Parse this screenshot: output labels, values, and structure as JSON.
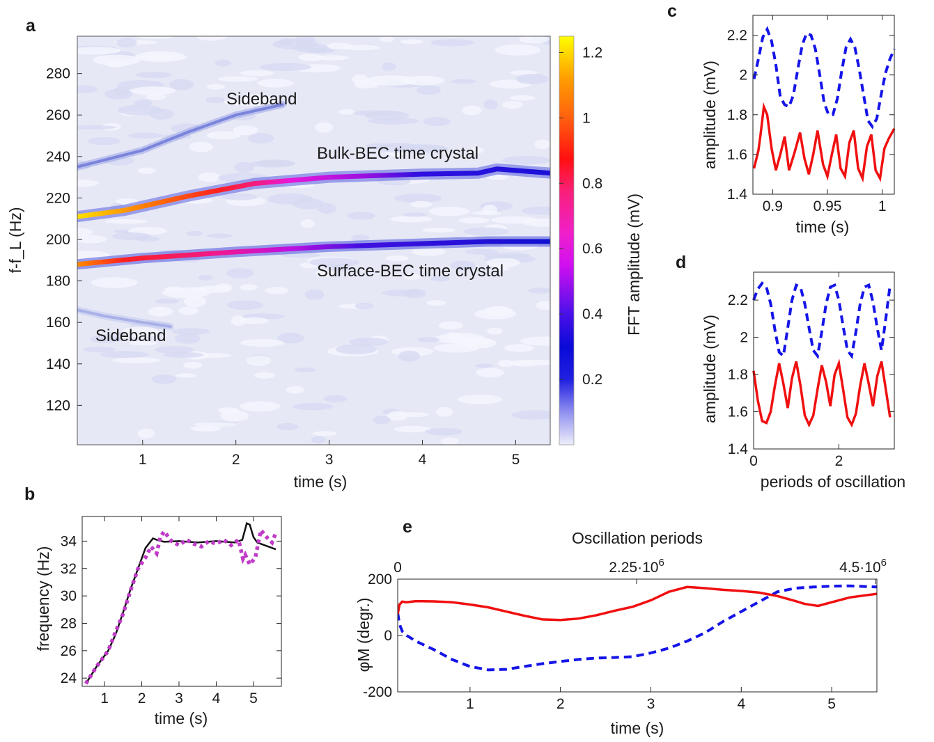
{
  "panels": [
    {
      "id": "a",
      "label": "a"
    },
    {
      "id": "b",
      "label": "b"
    },
    {
      "id": "c",
      "label": "c"
    },
    {
      "id": "d",
      "label": "d"
    },
    {
      "id": "e",
      "label": "e"
    }
  ],
  "colors": {
    "dashed": "#1515e8",
    "solid_red": "#f01010",
    "black": "#111111",
    "magenta": "#c03cc8"
  },
  "chart_data": [
    {
      "id": "a",
      "type": "heatmap",
      "xlabel": "time (s)",
      "ylabel": "f-f_L (Hz)",
      "xlim": [
        0.3,
        5.37
      ],
      "ylim": [
        101,
        298
      ],
      "xticks": [
        1,
        2,
        3,
        4,
        5
      ],
      "yticks": [
        120,
        140,
        160,
        180,
        200,
        220,
        240,
        260,
        280
      ],
      "colorbar": {
        "label": "FFT amplitude (mV)",
        "range": [
          0,
          1.25
        ],
        "ticks": [
          0.2,
          0.4,
          0.6,
          0.8,
          1,
          1.2
        ]
      },
      "annotations": [
        "Sideband",
        "Bulk-BEC time crystal",
        "Surface-BEC time crystal",
        "Sideband"
      ],
      "ridges": [
        {
          "name": "Bulk-BEC time crystal",
          "x": [
            0.3,
            0.8,
            1.5,
            2.2,
            3,
            4,
            4.6,
            4.8,
            5.37
          ],
          "y": [
            211,
            214,
            221,
            227,
            230,
            231.5,
            232,
            234,
            232
          ]
        },
        {
          "name": "Surface-BEC time crystal",
          "x": [
            0.3,
            1,
            2,
            3,
            4,
            4.7,
            5.37
          ],
          "y": [
            188,
            191,
            194,
            196.5,
            198,
            199,
            199
          ]
        },
        {
          "name": "Sideband",
          "x": [
            0.3,
            1,
            1.5,
            2,
            2.5
          ],
          "y": [
            235,
            243,
            252,
            260,
            265
          ]
        },
        {
          "name": "Sideband",
          "x": [
            0.3,
            0.6,
            1,
            1.3
          ],
          "y": [
            166,
            163,
            160,
            158
          ]
        }
      ]
    },
    {
      "id": "b",
      "type": "line",
      "xlabel": "time (s)",
      "ylabel": "frequency (Hz)",
      "xlim": [
        0.4,
        5.75
      ],
      "ylim": [
        23.4,
        35.8
      ],
      "xticks": [
        1,
        2,
        3,
        4,
        5
      ],
      "yticks": [
        24,
        26,
        28,
        30,
        32,
        34
      ],
      "series": [
        {
          "style": "solid-black",
          "x": [
            0.5,
            0.8,
            1.1,
            1.3,
            1.5,
            1.7,
            1.9,
            2.1,
            2.3,
            2.45,
            2.6,
            3,
            3.5,
            4,
            4.5,
            4.7,
            4.82,
            4.9,
            5.0,
            5.1,
            5.3,
            5.6
          ],
          "y": [
            23.6,
            24.9,
            26,
            27.2,
            28.8,
            30.5,
            32,
            33.5,
            34.2,
            34.05,
            33.95,
            34,
            33.9,
            34,
            33.9,
            34.1,
            35.3,
            35.2,
            34.3,
            33.9,
            33.7,
            33.4
          ]
        },
        {
          "style": "dotted-magenta",
          "x": [
            0.5,
            0.8,
            1.1,
            1.3,
            1.5,
            1.7,
            1.9,
            2.1,
            2.25,
            2.4,
            2.5,
            2.6,
            2.8,
            3.0,
            3.2,
            3.4,
            3.6,
            3.8,
            4.0,
            4.2,
            4.4,
            4.6,
            4.72,
            4.78,
            4.9,
            5.05,
            5.2,
            5.35,
            5.5,
            5.6
          ],
          "y": [
            23.6,
            24.9,
            26,
            27.4,
            28.7,
            30.4,
            32,
            32.8,
            33.6,
            33.1,
            34.3,
            34.7,
            34,
            33.7,
            34.1,
            33.8,
            33.6,
            34,
            33.8,
            34.1,
            33.7,
            34.1,
            32.7,
            33,
            32.3,
            32.8,
            34.8,
            34.3,
            33.9,
            34.6
          ]
        }
      ]
    },
    {
      "id": "c",
      "type": "line",
      "xlabel": "time (s)",
      "ylabel": "amplitude (mV)",
      "xlim": [
        0.882,
        1.011
      ],
      "ylim": [
        1.4,
        2.3
      ],
      "xticks": [
        0.9,
        0.95,
        1
      ],
      "xtick_labels": [
        "0.9",
        "0.95",
        "1"
      ],
      "yticks": [
        1.4,
        1.6,
        1.8,
        2,
        2.2
      ],
      "yticks_labels": [
        "1.4",
        "1.6",
        "1.8",
        "2",
        "2.2"
      ],
      "series": [
        {
          "style": "dashed-blue",
          "x": [
            0.883,
            0.887,
            0.891,
            0.895,
            0.899,
            0.903,
            0.907,
            0.911,
            0.915,
            0.919,
            0.923,
            0.927,
            0.931,
            0.935,
            0.939,
            0.943,
            0.947,
            0.951,
            0.955,
            0.959,
            0.963,
            0.967,
            0.971,
            0.975,
            0.979,
            0.983,
            0.987,
            0.991,
            0.995,
            0.999,
            1.003,
            1.007,
            1.011
          ],
          "y": [
            1.98,
            2.08,
            2.19,
            2.23,
            2.17,
            2.05,
            1.89,
            1.85,
            1.84,
            1.9,
            2.03,
            2.15,
            2.21,
            2.2,
            2.13,
            2.0,
            1.86,
            1.8,
            1.8,
            1.88,
            2.02,
            2.14,
            2.18,
            2.14,
            2.03,
            1.9,
            1.77,
            1.74,
            1.78,
            1.9,
            2.01,
            2.08,
            2.13
          ]
        },
        {
          "style": "solid-red",
          "x": [
            0.883,
            0.887,
            0.889,
            0.892,
            0.895,
            0.899,
            0.903,
            0.907,
            0.911,
            0.915,
            0.92,
            0.925,
            0.929,
            0.933,
            0.937,
            0.941,
            0.946,
            0.95,
            0.954,
            0.958,
            0.962,
            0.966,
            0.97,
            0.974,
            0.978,
            0.982,
            0.986,
            0.99,
            0.994,
            0.998,
            1.002,
            1.006,
            1.011
          ],
          "y": [
            1.53,
            1.62,
            1.7,
            1.84,
            1.8,
            1.63,
            1.52,
            1.6,
            1.69,
            1.52,
            1.61,
            1.71,
            1.58,
            1.5,
            1.6,
            1.72,
            1.55,
            1.49,
            1.6,
            1.7,
            1.53,
            1.49,
            1.66,
            1.72,
            1.53,
            1.48,
            1.64,
            1.7,
            1.52,
            1.48,
            1.63,
            1.68,
            1.73
          ]
        }
      ]
    },
    {
      "id": "d",
      "type": "line",
      "xlabel": "periods of oscillation",
      "ylabel": "amplitude (mV)",
      "xlim": [
        0,
        3.3
      ],
      "ylim": [
        1.4,
        2.35
      ],
      "xticks": [
        0,
        2
      ],
      "yticks": [
        1.4,
        1.6,
        1.8,
        2,
        2.2
      ],
      "yticks_labels": [
        "1.4",
        "1.6",
        "1.8",
        "2",
        "2.2"
      ],
      "series": [
        {
          "style": "dashed-blue",
          "x": [
            0,
            0.1,
            0.2,
            0.3,
            0.4,
            0.5,
            0.6,
            0.7,
            0.8,
            0.9,
            1.0,
            1.1,
            1.2,
            1.3,
            1.4,
            1.5,
            1.6,
            1.7,
            1.8,
            1.9,
            2.0,
            2.1,
            2.2,
            2.3,
            2.4,
            2.5,
            2.6,
            2.7,
            2.8,
            2.9,
            3.0,
            3.1,
            3.2
          ],
          "y": [
            2.2,
            2.26,
            2.29,
            2.27,
            2.18,
            2.04,
            1.92,
            1.9,
            2.05,
            2.2,
            2.28,
            2.27,
            2.18,
            2.05,
            1.93,
            1.9,
            2.03,
            2.18,
            2.27,
            2.28,
            2.2,
            2.06,
            1.93,
            1.9,
            2.03,
            2.18,
            2.27,
            2.28,
            2.19,
            2.05,
            1.93,
            2.1,
            2.28
          ]
        },
        {
          "style": "solid-red",
          "x": [
            0,
            0.1,
            0.2,
            0.3,
            0.4,
            0.5,
            0.6,
            0.7,
            0.8,
            0.9,
            1.0,
            1.1,
            1.2,
            1.3,
            1.4,
            1.5,
            1.6,
            1.7,
            1.8,
            1.9,
            2.0,
            2.1,
            2.2,
            2.3,
            2.4,
            2.5,
            2.6,
            2.7,
            2.8,
            2.9,
            3.0,
            3.1,
            3.2
          ],
          "y": [
            1.82,
            1.66,
            1.55,
            1.54,
            1.6,
            1.74,
            1.86,
            1.75,
            1.62,
            1.78,
            1.87,
            1.74,
            1.58,
            1.53,
            1.58,
            1.72,
            1.85,
            1.76,
            1.63,
            1.8,
            1.86,
            1.72,
            1.57,
            1.53,
            1.59,
            1.74,
            1.86,
            1.75,
            1.63,
            1.79,
            1.87,
            1.72,
            1.57
          ]
        }
      ]
    },
    {
      "id": "e",
      "type": "line",
      "title": "Oscillation periods",
      "xlabel": "time (s)",
      "ylabel": "φM (degr.)",
      "xlim": [
        0.2,
        5.5
      ],
      "ylim": [
        -200,
        200
      ],
      "xticks": [
        1,
        2,
        3,
        4,
        5
      ],
      "yticks": [
        -200,
        0,
        200
      ],
      "top_axis": {
        "range": [
          0,
          4500000
        ],
        "ticks": [
          0,
          2250000,
          4500000
        ],
        "tick_labels": [
          {
            "base": "0",
            "exp": ""
          },
          {
            "base": "2.25·10",
            "exp": "6"
          },
          {
            "base": "4.5·10",
            "exp": "6"
          }
        ]
      },
      "series": [
        {
          "style": "dashed-blue",
          "x": [
            0.2,
            0.22,
            0.25,
            0.3,
            0.4,
            0.6,
            0.8,
            1.0,
            1.2,
            1.4,
            1.6,
            1.8,
            2.0,
            2.2,
            2.4,
            2.6,
            2.8,
            3.0,
            3.2,
            3.4,
            3.6,
            3.8,
            4.0,
            4.2,
            4.4,
            4.6,
            4.8,
            5.0,
            5.2,
            5.5
          ],
          "y": [
            80,
            40,
            15,
            0,
            -20,
            -50,
            -85,
            -110,
            -122,
            -120,
            -110,
            -100,
            -92,
            -85,
            -80,
            -78,
            -75,
            -62,
            -45,
            -20,
            10,
            50,
            85,
            120,
            155,
            168,
            172,
            175,
            176,
            172
          ]
        },
        {
          "style": "solid-red",
          "x": [
            0.2,
            0.22,
            0.25,
            0.3,
            0.4,
            0.6,
            0.8,
            1.0,
            1.2,
            1.4,
            1.6,
            1.8,
            2.0,
            2.2,
            2.4,
            2.6,
            2.8,
            3.0,
            3.2,
            3.4,
            3.6,
            3.8,
            4.0,
            4.2,
            4.4,
            4.6,
            4.7,
            4.85,
            5.0,
            5.2,
            5.5
          ],
          "y": [
            75,
            110,
            120,
            118,
            122,
            121,
            118,
            110,
            100,
            85,
            70,
            57,
            55,
            60,
            72,
            88,
            102,
            125,
            155,
            172,
            168,
            162,
            158,
            152,
            140,
            122,
            112,
            105,
            118,
            135,
            148
          ]
        }
      ]
    }
  ]
}
